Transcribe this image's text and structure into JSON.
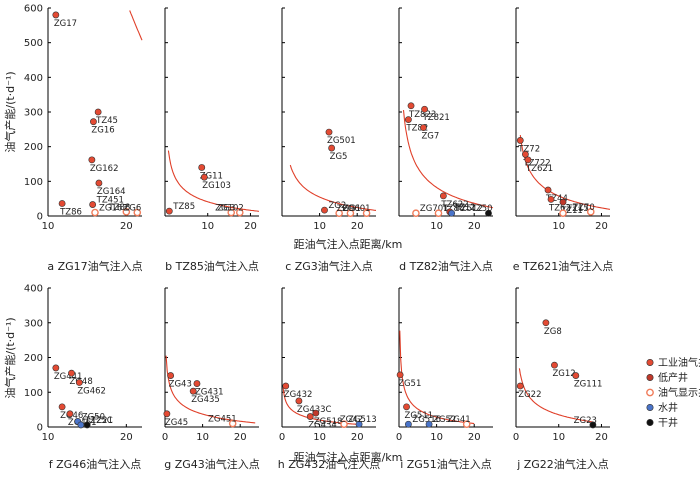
{
  "figure": {
    "y_axis_label": "油气产能/(t·d⁻¹)",
    "x_axis_label": "距油气注入点距离/km"
  },
  "legend": [
    {
      "name": "工业油气井",
      "color": "#e34a33",
      "style": "filled"
    },
    {
      "name": "低产井",
      "color": "#c0392b",
      "style": "filled"
    },
    {
      "name": "油气显示井",
      "color": "#f07c5a",
      "style": "open"
    },
    {
      "name": "水井",
      "color": "#4a74c9",
      "style": "filled"
    },
    {
      "name": "干井",
      "color": "#111111",
      "style": "filled"
    }
  ],
  "chart_data": [
    {
      "type": "scatter",
      "caption": "a ZG17油气注入点",
      "xlim": [
        10,
        22
      ],
      "ylim": [
        0,
        600
      ],
      "xticks": [
        10,
        20
      ],
      "yticks": [
        0,
        100,
        200,
        300,
        400,
        500,
        600
      ],
      "points": [
        {
          "label": "ZG17",
          "x": 11.0,
          "y": 580,
          "kind": 0
        },
        {
          "label": "TZ45",
          "x": 16.4,
          "y": 300,
          "kind": 0
        },
        {
          "label": "ZG16",
          "x": 15.8,
          "y": 272,
          "kind": 0
        },
        {
          "label": "ZG162",
          "x": 15.6,
          "y": 162,
          "kind": 0
        },
        {
          "label": "ZG164",
          "x": 16.5,
          "y": 95,
          "kind": 0
        },
        {
          "label": "TZ86",
          "x": 11.8,
          "y": 36,
          "kind": 0
        },
        {
          "label": "TZ451",
          "x": 15.7,
          "y": 33,
          "kind": 0
        },
        {
          "label": "ZG163",
          "x": 16.0,
          "y": 10,
          "kind": 2
        },
        {
          "label": "TZ88",
          "x": 20.0,
          "y": 12,
          "kind": 2
        },
        {
          "label": "ZG6",
          "x": 21.4,
          "y": 10,
          "kind": 2
        }
      ],
      "curve": {
        "a": 9850,
        "b": -0.26,
        "from": 10.6,
        "to": 22
      }
    },
    {
      "type": "scatter",
      "caption": "b TZ85油气注入点",
      "xlim": [
        0,
        22
      ],
      "ylim": [
        0,
        600
      ],
      "xticks": [
        10,
        20
      ],
      "yticks": [
        0,
        100,
        200,
        300,
        400,
        500,
        600
      ],
      "points": [
        {
          "label": "TZ85",
          "x": 1.0,
          "y": 14,
          "kind": 0
        },
        {
          "label": "ZG11",
          "x": 8.6,
          "y": 140,
          "kind": 0
        },
        {
          "label": "ZG103",
          "x": 9.2,
          "y": 112,
          "kind": 0
        },
        {
          "label": "ZG3",
          "x": 15.5,
          "y": 10,
          "kind": 2
        },
        {
          "label": "ZG102",
          "x": 17.5,
          "y": 10,
          "kind": 2
        }
      ],
      "curve": {
        "a": 260,
        "b": -0.3,
        "from": 0.8,
        "to": 22
      }
    },
    {
      "type": "scatter",
      "caption": "c ZG3油气注入点",
      "xlim": [
        0,
        25
      ],
      "ylim": [
        0,
        600
      ],
      "xticks": [
        10,
        20
      ],
      "yticks": [
        0,
        100,
        200,
        300,
        400,
        500,
        600
      ],
      "points": [
        {
          "label": "ZG501",
          "x": 12.5,
          "y": 242,
          "kind": 0
        },
        {
          "label": "ZG5",
          "x": 13.2,
          "y": 196,
          "kind": 0
        },
        {
          "label": "ZG2",
          "x": 11.3,
          "y": 17,
          "kind": 0
        },
        {
          "label": "ZG1",
          "x": 15.2,
          "y": 8,
          "kind": 2
        },
        {
          "label": "ZG9",
          "x": 18.2,
          "y": 8,
          "kind": 2
        },
        {
          "label": "ZG601",
          "x": 22.5,
          "y": 8,
          "kind": 2
        }
      ],
      "curve": {
        "a": 320,
        "b": -0.3,
        "from": 2.2,
        "to": 25
      }
    },
    {
      "type": "scatter",
      "caption": "d TZ82油气注入点",
      "xlim": [
        0,
        25
      ],
      "ylim": [
        0,
        600
      ],
      "xticks": [
        10,
        20
      ],
      "yticks": [
        0,
        100,
        200,
        300,
        400,
        500,
        600
      ],
      "points": [
        {
          "label": "TZ823",
          "x": 3.2,
          "y": 318,
          "kind": 0
        },
        {
          "label": "TZ821",
          "x": 6.8,
          "y": 308,
          "kind": 0
        },
        {
          "label": "TZ82",
          "x": 2.5,
          "y": 278,
          "kind": 0
        },
        {
          "label": "ZG7",
          "x": 6.5,
          "y": 255,
          "kind": 0
        },
        {
          "label": "TZ622",
          "x": 11.8,
          "y": 58,
          "kind": 0
        },
        {
          "label": "ZG701",
          "x": 4.5,
          "y": 8,
          "kind": 2
        },
        {
          "label": "TZ80",
          "x": 10.5,
          "y": 8,
          "kind": 2
        },
        {
          "label": "TZ12",
          "x": 13.5,
          "y": 12,
          "kind": 1
        },
        {
          "label": "TZ512",
          "x": 14.0,
          "y": 8,
          "kind": 3
        },
        {
          "label": "TZ50",
          "x": 23.8,
          "y": 8,
          "kind": 4
        }
      ],
      "curve": {
        "a": 480,
        "b": -0.32,
        "from": 1.2,
        "to": 25
      }
    },
    {
      "type": "scatter",
      "caption": "e TZ621油气注入点",
      "xlim": [
        0,
        22
      ],
      "ylim": [
        0,
        600
      ],
      "xticks": [
        10,
        20
      ],
      "yticks": [
        0,
        100,
        200,
        300,
        400,
        500,
        600
      ],
      "points": [
        {
          "label": "TZ72",
          "x": 1.0,
          "y": 218,
          "kind": 0
        },
        {
          "label": "TZ722",
          "x": 2.2,
          "y": 178,
          "kind": 0
        },
        {
          "label": "TZ621",
          "x": 2.8,
          "y": 162,
          "kind": 0
        },
        {
          "label": "TZ44",
          "x": 7.5,
          "y": 75,
          "kind": 0
        },
        {
          "label": "TZ62",
          "x": 8.2,
          "y": 48,
          "kind": 0
        },
        {
          "label": "TZ11",
          "x": 11.0,
          "y": 40,
          "kind": 1
        },
        {
          "label": "TZ15",
          "x": 11.0,
          "y": 8,
          "kind": 2
        },
        {
          "label": "TZ70",
          "x": 17.5,
          "y": 12,
          "kind": 2
        }
      ],
      "curve": {
        "a": 370,
        "b": -0.28,
        "from": 1.0,
        "to": 22
      }
    },
    {
      "type": "scatter",
      "caption": "f ZG46油气注入点",
      "xlim": [
        10,
        22
      ],
      "ylim": [
        0,
        400
      ],
      "xticks": [
        10,
        20
      ],
      "yticks": [
        0,
        100,
        200,
        300,
        400
      ],
      "points": [
        {
          "label": "ZG441",
          "x": 11.0,
          "y": 170,
          "kind": 0
        },
        {
          "label": "ZG48",
          "x": 13.0,
          "y": 155,
          "kind": 0
        },
        {
          "label": "ZG462",
          "x": 14.0,
          "y": 128,
          "kind": 0
        },
        {
          "label": "ZG46",
          "x": 11.8,
          "y": 58,
          "kind": 0
        },
        {
          "label": "ZG461",
          "x": 12.8,
          "y": 38,
          "kind": 0
        },
        {
          "label": "ZG50",
          "x": 13.8,
          "y": 16,
          "kind": 3
        },
        {
          "label": "TZ25C",
          "x": 14.2,
          "y": 6,
          "kind": 3
        },
        {
          "label": "TZ21",
          "x": 15.0,
          "y": 6,
          "kind": 4
        }
      ],
      "curve": {
        "a": 13000,
        "b": -0.36,
        "from": 10.6,
        "to": 20
      }
    },
    {
      "type": "scatter",
      "caption": "g ZG43油气注入点",
      "xlim": [
        0,
        25
      ],
      "ylim": [
        0,
        400
      ],
      "xticks": [
        0,
        10,
        20
      ],
      "yticks": [
        0,
        100,
        200,
        300,
        400
      ],
      "points": [
        {
          "label": "ZG43",
          "x": 1.5,
          "y": 148,
          "kind": 0
        },
        {
          "label": "ZG431",
          "x": 8.5,
          "y": 125,
          "kind": 0
        },
        {
          "label": "ZG435",
          "x": 7.5,
          "y": 103,
          "kind": 0
        },
        {
          "label": "ZG45",
          "x": 0.5,
          "y": 38,
          "kind": 0
        },
        {
          "label": "ZG451",
          "x": 18.0,
          "y": 10,
          "kind": 2
        }
      ],
      "curve": {
        "a": 240,
        "b": -0.22,
        "from": 0.3,
        "to": 24
      }
    },
    {
      "type": "scatter",
      "caption": "h ZG432油气注入点",
      "xlim": [
        0,
        25
      ],
      "ylim": [
        0,
        400
      ],
      "xticks": [
        0,
        10,
        20
      ],
      "yticks": [
        0,
        100,
        200,
        300,
        400
      ],
      "points": [
        {
          "label": "ZG432",
          "x": 1.0,
          "y": 118,
          "kind": 0
        },
        {
          "label": "ZG433C",
          "x": 4.5,
          "y": 75,
          "kind": 0
        },
        {
          "label": "ZG518",
          "x": 9.0,
          "y": 40,
          "kind": 1
        },
        {
          "label": "ZG434",
          "x": 7.5,
          "y": 30,
          "kind": 0
        },
        {
          "label": "ZG513",
          "x": 16.5,
          "y": 8,
          "kind": 2
        },
        {
          "label": "ZG42",
          "x": 20.5,
          "y": 8,
          "kind": 3
        }
      ],
      "curve": {
        "a": 160,
        "b": -0.18,
        "from": 0.3,
        "to": 20
      }
    },
    {
      "type": "scatter",
      "caption": "i ZG51油气注入点",
      "xlim": [
        0,
        25
      ],
      "ylim": [
        0,
        400
      ],
      "xticks": [
        0,
        10,
        20
      ],
      "yticks": [
        0,
        100,
        200,
        300,
        400
      ],
      "points": [
        {
          "label": "ZG51",
          "x": 0.3,
          "y": 150,
          "kind": 0
        },
        {
          "label": "ZG511",
          "x": 2.0,
          "y": 58,
          "kind": 0
        },
        {
          "label": "ZG516",
          "x": 2.5,
          "y": 8,
          "kind": 3
        },
        {
          "label": "ZG52",
          "x": 8.0,
          "y": 8,
          "kind": 3
        },
        {
          "label": "ZG41",
          "x": 18.0,
          "y": 8,
          "kind": 2
        }
      ],
      "curve": {
        "a": 190,
        "b": -0.35,
        "from": 0.2,
        "to": 20
      }
    },
    {
      "type": "scatter",
      "caption": "j ZG22油气注入点",
      "xlim": [
        0,
        22
      ],
      "ylim": [
        0,
        400
      ],
      "xticks": [
        0,
        10,
        20
      ],
      "yticks": [
        0,
        100,
        200,
        300,
        400
      ],
      "points": [
        {
          "label": "ZG8",
          "x": 7.0,
          "y": 300,
          "kind": 0
        },
        {
          "label": "ZG12",
          "x": 9.0,
          "y": 178,
          "kind": 0
        },
        {
          "label": "ZG111",
          "x": 14.0,
          "y": 148,
          "kind": 0
        },
        {
          "label": "ZG22",
          "x": 1.0,
          "y": 118,
          "kind": 0
        },
        {
          "label": "ZG23",
          "x": 18.0,
          "y": 6,
          "kind": 4
        }
      ],
      "curve": {
        "a": 270,
        "b": -0.25,
        "from": 0.8,
        "to": 18
      }
    }
  ]
}
